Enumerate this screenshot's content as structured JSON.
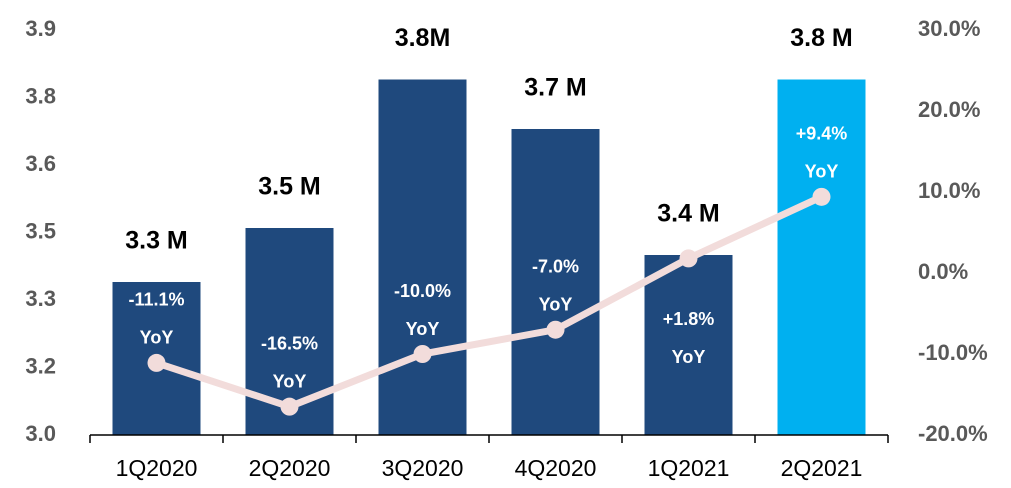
{
  "chart_data": {
    "type": "bar",
    "categories": [
      "1Q2020",
      "2Q2020",
      "3Q2020",
      "4Q2020",
      "1Q2021",
      "2Q2021"
    ],
    "series": [
      {
        "type": "bar",
        "colors": [
          "#1f497d",
          "#1f497d",
          "#1f497d",
          "#1f497d",
          "#1f497d",
          "#00b0f0"
        ],
        "values": [
          3.34,
          3.46,
          3.79,
          3.68,
          3.4,
          3.79
        ],
        "value_labels": [
          "3.3 M",
          "3.5 M",
          "3.8M",
          "3.7 M",
          "3.4 M",
          "3.8 M"
        ]
      },
      {
        "type": "line",
        "name": "YoY",
        "axis": "y2",
        "color": "#f2dcdb",
        "values": [
          -11.1,
          -16.5,
          -10.0,
          -7.0,
          1.8,
          9.4
        ],
        "value_labels": [
          "-11.1%",
          "-16.5%",
          "-10.0%",
          "-7.0%",
          "+1.8%",
          "+9.4%"
        ]
      }
    ],
    "ylim": [
      3.0,
      3.9
    ],
    "yticks": [
      {
        "value": 3.0,
        "label": "3.0"
      },
      {
        "value": 3.15,
        "label": "3.2"
      },
      {
        "value": 3.3,
        "label": "3.3"
      },
      {
        "value": 3.45,
        "label": "3.5"
      },
      {
        "value": 3.6,
        "label": "3.6"
      },
      {
        "value": 3.75,
        "label": "3.8"
      },
      {
        "value": 3.9,
        "label": "3.9"
      }
    ],
    "y2lim": [
      -20,
      30
    ],
    "y2ticks": [
      {
        "value": -20,
        "label": "-20.0%"
      },
      {
        "value": -10,
        "label": "-10.0%"
      },
      {
        "value": 0,
        "label": "0.0%"
      },
      {
        "value": 10,
        "label": "10.0%"
      },
      {
        "value": 20,
        "label": "20.0%"
      },
      {
        "value": 30,
        "label": "30.0%"
      }
    ]
  }
}
